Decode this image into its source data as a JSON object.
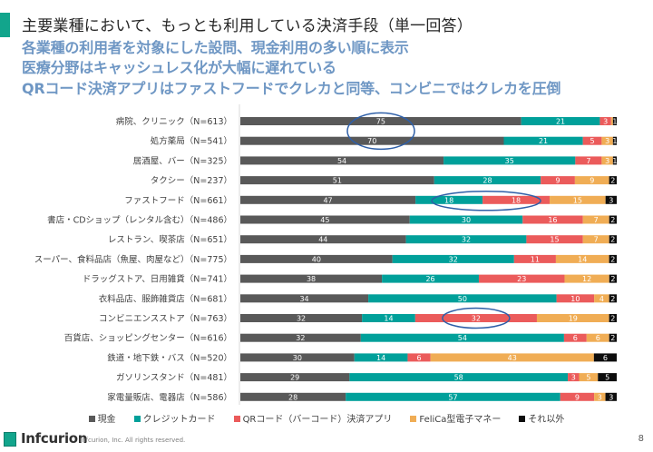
{
  "header": {
    "title": "主要業種において、もっとも利用している決済手段（単一回答）",
    "subtitles": [
      "各業種の利用者を対象にした設問、現金利用の多い順に表示",
      "医療分野はキャッシュレス化が大幅に遅れている",
      "QRコード決済アプリはファストフードでクレカと同等、コンビニではクレカを圧倒"
    ]
  },
  "chart_data": {
    "type": "bar",
    "orientation": "horizontal",
    "stacked": "percent",
    "title": "主要業種において、もっとも利用している決済手段（単一回答）",
    "xlabel": "",
    "ylabel": "",
    "xlim": [
      0,
      100
    ],
    "grid": false,
    "legend_position": "bottom",
    "categories": [
      "病院、クリニック（N=613）",
      "処方薬局（N=541）",
      "居酒屋、バー（N=325）",
      "タクシー（N=237）",
      "ファストフード（N=661）",
      "書店・CDショップ（レンタル含む）（N=486）",
      "レストラン、喫茶店（N=651）",
      "スーパー、食料品店（魚屋、肉屋など）（N=775）",
      "ドラッグストア、日用雑貨（N=741）",
      "衣料品店、服飾雑貨店（N=681）",
      "コンビニエンスストア（N=763）",
      "百貨店、ショッピングセンター（N=616）",
      "鉄道・地下鉄・バス（N=520）",
      "ガソリンスタンド（N=481）",
      "家電量販店、電器店（N=586）"
    ],
    "series": [
      {
        "name": "現金",
        "color": "#595959",
        "label_color": "#ffffff",
        "values": [
          75,
          70,
          54,
          51,
          47,
          45,
          44,
          40,
          38,
          34,
          32,
          32,
          30,
          29,
          28
        ]
      },
      {
        "name": "クレジットカード",
        "color": "#00a09a",
        "label_color": "#ffffff",
        "values": [
          21,
          21,
          35,
          28,
          18,
          30,
          32,
          32,
          26,
          50,
          14,
          54,
          14,
          58,
          57
        ]
      },
      {
        "name": "QRコード（バーコード）決済アプリ",
        "color": "#eb5b5b",
        "label_color": "#ffffff",
        "values": [
          3,
          5,
          7,
          9,
          18,
          16,
          15,
          11,
          23,
          10,
          32,
          6,
          6,
          3,
          9
        ]
      },
      {
        "name": "FeliCa型電子マネー",
        "color": "#f0ad55",
        "label_color": "#ffffff",
        "values": [
          0.5,
          3,
          3,
          9,
          15,
          7,
          7,
          14,
          12,
          4,
          19,
          6,
          43,
          5,
          3
        ]
      },
      {
        "name": "それ以外",
        "color": "#0d0d0d",
        "label_color": "#ffffff",
        "values": [
          1,
          1,
          1,
          2,
          3,
          2,
          2,
          2,
          2,
          2,
          2,
          2,
          6,
          5,
          3
        ]
      }
    ],
    "value_labels": [
      [
        "75",
        "21",
        "3",
        "",
        "1"
      ],
      [
        "70",
        "21",
        "5",
        "3",
        "1"
      ],
      [
        "54",
        "35",
        "7",
        "3",
        "1"
      ],
      [
        "51",
        "28",
        "9",
        "9",
        "2"
      ],
      [
        "47",
        "18",
        "18",
        "15",
        "3"
      ],
      [
        "45",
        "30",
        "16",
        "7",
        "2"
      ],
      [
        "44",
        "32",
        "15",
        "7",
        "2"
      ],
      [
        "40",
        "32",
        "11",
        "14",
        "2"
      ],
      [
        "38",
        "26",
        "23",
        "12",
        "2"
      ],
      [
        "34",
        "50",
        "10",
        "4",
        "2"
      ],
      [
        "32",
        "14",
        "32",
        "19",
        "2"
      ],
      [
        "32",
        "54",
        "6",
        "6",
        "2"
      ],
      [
        "30",
        "14",
        "6",
        "43",
        "6"
      ],
      [
        "29",
        "58",
        "3",
        "5",
        "5"
      ],
      [
        "28",
        "57",
        "9",
        "3",
        "3"
      ]
    ],
    "annotations": [
      {
        "type": "ellipse",
        "color": "#2e5fa8",
        "rows": [
          0,
          1
        ],
        "around": "現金 values 75 and 70"
      },
      {
        "type": "ellipse",
        "color": "#2e5fa8",
        "rows": [
          4
        ],
        "around": "クレジットカード 18 and QRコード 18"
      },
      {
        "type": "ellipse",
        "color": "#2e5fa8",
        "rows": [
          10
        ],
        "around": "QRコード 32"
      }
    ]
  },
  "legend": [
    {
      "label": "現金",
      "color": "#595959"
    },
    {
      "label": "クレジットカード",
      "color": "#00a09a"
    },
    {
      "label": "QRコード（バーコード）決済アプリ",
      "color": "#eb5b5b"
    },
    {
      "label": "FeliCa型電子マネー",
      "color": "#f0ad55"
    },
    {
      "label": "それ以外",
      "color": "#0d0d0d"
    }
  ],
  "footer": {
    "brand": "Infcurion",
    "copyright": "Infcurion, Inc.  All rights reserved.",
    "page_number": "8"
  }
}
